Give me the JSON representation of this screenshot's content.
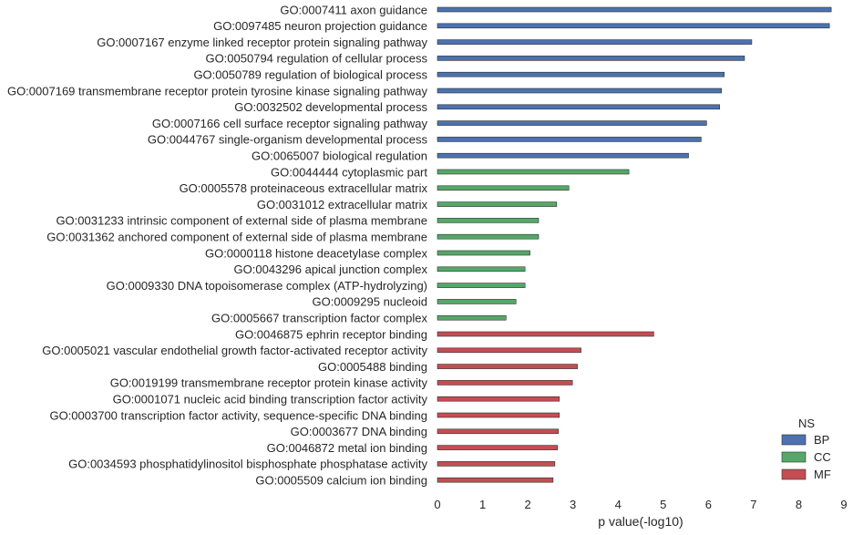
{
  "chart_data": {
    "type": "bar",
    "orientation": "horizontal",
    "xlabel": "p value(-log10)",
    "ylabel": "",
    "xlim": [
      0,
      9
    ],
    "xticks": [
      0,
      1,
      2,
      3,
      4,
      5,
      6,
      7,
      8,
      9
    ],
    "grid": false,
    "legend": {
      "title": "NS",
      "placement": "bottom-right",
      "entries": [
        {
          "name": "BP",
          "color": "#4c72b0"
        },
        {
          "name": "CC",
          "color": "#55a868"
        },
        {
          "name": "MF",
          "color": "#c44e52"
        }
      ]
    },
    "categories": [
      {
        "label": "GO:0007411 axon guidance",
        "value": 8.72,
        "ns": "BP"
      },
      {
        "label": "GO:0097485 neuron projection guidance",
        "value": 8.68,
        "ns": "BP"
      },
      {
        "label": "GO:0007167 enzyme linked receptor protein signaling pathway",
        "value": 6.96,
        "ns": "BP"
      },
      {
        "label": "GO:0050794 regulation of cellular process",
        "value": 6.8,
        "ns": "BP"
      },
      {
        "label": "GO:0050789 regulation of biological process",
        "value": 6.35,
        "ns": "BP"
      },
      {
        "label": "GO:0007169 transmembrane receptor protein tyrosine kinase signaling pathway",
        "value": 6.29,
        "ns": "BP"
      },
      {
        "label": "GO:0032502 developmental process",
        "value": 6.25,
        "ns": "BP"
      },
      {
        "label": "GO:0007166 cell surface receptor signaling pathway",
        "value": 5.96,
        "ns": "BP"
      },
      {
        "label": "GO:0044767 single-organism developmental process",
        "value": 5.84,
        "ns": "BP"
      },
      {
        "label": "GO:0065007 biological regulation",
        "value": 5.56,
        "ns": "BP"
      },
      {
        "label": "GO:0044444 cytoplasmic part",
        "value": 4.24,
        "ns": "CC"
      },
      {
        "label": "GO:0005578 proteinaceous extracellular matrix",
        "value": 2.91,
        "ns": "CC"
      },
      {
        "label": "GO:0031012 extracellular matrix",
        "value": 2.64,
        "ns": "CC"
      },
      {
        "label": "GO:0031233 intrinsic component of external side of plasma membrane",
        "value": 2.24,
        "ns": "CC"
      },
      {
        "label": "GO:0031362 anchored component of external side of plasma membrane",
        "value": 2.24,
        "ns": "CC"
      },
      {
        "label": "GO:0000118 histone deacetylase complex",
        "value": 2.05,
        "ns": "CC"
      },
      {
        "label": "GO:0043296 apical junction complex",
        "value": 1.94,
        "ns": "CC"
      },
      {
        "label": "GO:0009330 DNA topoisomerase complex (ATP-hydrolyzing)",
        "value": 1.94,
        "ns": "CC"
      },
      {
        "label": "GO:0009295 nucleoid",
        "value": 1.74,
        "ns": "CC"
      },
      {
        "label": "GO:0005667 transcription factor complex",
        "value": 1.52,
        "ns": "CC"
      },
      {
        "label": "GO:0046875 ephrin receptor binding",
        "value": 4.79,
        "ns": "MF"
      },
      {
        "label": "GO:0005021 vascular endothelial growth factor-activated receptor activity",
        "value": 3.18,
        "ns": "MF"
      },
      {
        "label": "GO:0005488 binding",
        "value": 3.1,
        "ns": "MF"
      },
      {
        "label": "GO:0019199 transmembrane receptor protein kinase activity",
        "value": 2.99,
        "ns": "MF"
      },
      {
        "label": "GO:0001071 nucleic acid binding transcription factor activity",
        "value": 2.7,
        "ns": "MF"
      },
      {
        "label": "GO:0003700 transcription factor activity, sequence-specific DNA binding",
        "value": 2.7,
        "ns": "MF"
      },
      {
        "label": "GO:0003677 DNA binding",
        "value": 2.68,
        "ns": "MF"
      },
      {
        "label": "GO:0046872 metal ion binding",
        "value": 2.66,
        "ns": "MF"
      },
      {
        "label": "GO:0034593 phosphatidylinositol bisphosphate phosphatase activity",
        "value": 2.6,
        "ns": "MF"
      },
      {
        "label": "GO:0005509 calcium ion binding",
        "value": 2.56,
        "ns": "MF"
      }
    ]
  }
}
